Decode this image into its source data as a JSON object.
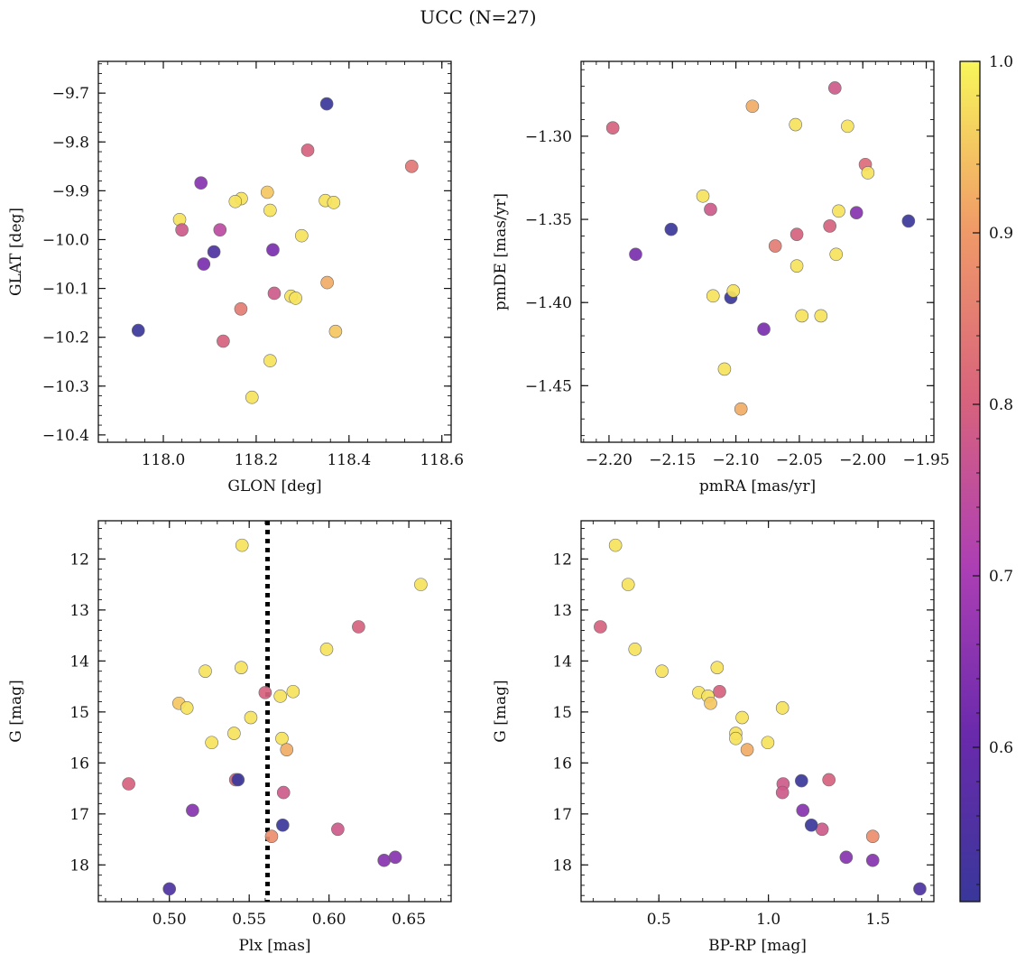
{
  "title": "UCC (N=27)",
  "colorbar": {
    "ticks": [
      "0.6",
      "0.7",
      "0.8",
      "0.9",
      "1.0"
    ],
    "tick_values": [
      0.6,
      0.7,
      0.8,
      0.9,
      1.0
    ],
    "vmin": 0.51,
    "vmax": 1.0,
    "colormap": "plasma"
  },
  "chart_data": [
    {
      "type": "scatter",
      "xlabel": "GLON [deg]",
      "ylabel": "GLAT [deg]",
      "xlim": [
        117.86,
        118.62
      ],
      "ylim": [
        -10.415,
        -9.635
      ],
      "xticks": [
        118.0,
        118.2,
        118.4,
        118.6
      ],
      "xtick_labels": [
        "118.0",
        "118.2",
        "118.4",
        "118.6"
      ],
      "yticks": [
        -10.4,
        -10.3,
        -10.2,
        -10.1,
        -10.0,
        -9.9,
        -9.8,
        -9.7
      ],
      "ytick_labels": [
        "−10.4",
        "−10.3",
        "−10.2",
        "−10.1",
        "−10.0",
        "−9.9",
        "−9.8",
        "−9.7"
      ],
      "y_inverted": false,
      "x": [
        118.352,
        118.311,
        118.535,
        118.081,
        118.224,
        118.168,
        118.155,
        118.349,
        118.367,
        118.23,
        118.035,
        118.04,
        118.122,
        118.236,
        118.109,
        118.298,
        118.087,
        118.353,
        118.239,
        118.275,
        118.285,
        118.167,
        118.371,
        117.946,
        118.129,
        118.23,
        118.191
      ],
      "y": [
        -9.722,
        -9.817,
        -9.85,
        -9.884,
        -9.903,
        -9.916,
        -9.922,
        -9.92,
        -9.924,
        -9.94,
        -9.959,
        -9.98,
        -9.98,
        -10.021,
        -10.025,
        -9.992,
        -10.05,
        -10.088,
        -10.11,
        -10.116,
        -10.12,
        -10.142,
        -10.188,
        -10.186,
        -10.208,
        -10.248,
        -10.323
      ],
      "c": [
        0.51,
        0.8,
        0.84,
        0.65,
        0.95,
        0.98,
        0.98,
        0.98,
        0.98,
        0.98,
        0.98,
        0.78,
        0.74,
        0.63,
        0.55,
        0.98,
        0.63,
        0.92,
        0.78,
        0.98,
        0.98,
        0.85,
        0.95,
        0.51,
        0.8,
        0.98,
        0.98
      ]
    },
    {
      "type": "scatter",
      "xlabel": "pmRA [mas/yr]",
      "ylabel": "pmDE [mas/yr]",
      "xlim": [
        -2.222,
        -1.944
      ],
      "ylim": [
        -1.484,
        -1.255
      ],
      "xticks": [
        -2.2,
        -2.15,
        -2.1,
        -2.05,
        -2.0,
        -1.95
      ],
      "xtick_labels": [
        "−2.20",
        "−2.15",
        "−2.10",
        "−2.05",
        "−2.00",
        "−1.95"
      ],
      "yticks": [
        -1.45,
        -1.4,
        -1.35,
        -1.3
      ],
      "ytick_labels": [
        "−1.45",
        "−1.40",
        "−1.35",
        "−1.30"
      ],
      "y_inverted": false,
      "x": [
        -2.022,
        -2.087,
        -2.197,
        -2.053,
        -2.012,
        -1.998,
        -1.996,
        -2.126,
        -2.12,
        -2.019,
        -2.005,
        -2.026,
        -1.964,
        -2.151,
        -2.052,
        -2.069,
        -2.021,
        -2.052,
        -2.179,
        -2.104,
        -2.102,
        -2.118,
        -2.048,
        -2.033,
        -2.078,
        -2.109,
        -2.096
      ],
      "y": [
        -1.271,
        -1.282,
        -1.295,
        -1.293,
        -1.294,
        -1.317,
        -1.322,
        -1.336,
        -1.344,
        -1.345,
        -1.346,
        -1.354,
        -1.351,
        -1.356,
        -1.359,
        -1.366,
        -1.371,
        -1.378,
        -1.371,
        -1.397,
        -1.393,
        -1.396,
        -1.408,
        -1.408,
        -1.416,
        -1.44,
        -1.464
      ],
      "c": [
        0.78,
        0.92,
        0.8,
        0.98,
        0.98,
        0.82,
        0.98,
        0.98,
        0.78,
        0.98,
        0.65,
        0.8,
        0.51,
        0.51,
        0.8,
        0.85,
        0.98,
        0.98,
        0.63,
        0.51,
        0.98,
        0.98,
        0.98,
        0.98,
        0.63,
        0.98,
        0.92
      ]
    },
    {
      "type": "scatter",
      "xlabel": "Plx [mas]",
      "ylabel": "G [mag]",
      "xlim": [
        0.4555,
        0.6765
      ],
      "ylim": [
        18.72,
        11.25
      ],
      "xticks": [
        0.5,
        0.55,
        0.6,
        0.65
      ],
      "xtick_labels": [
        "0.50",
        "0.55",
        "0.60",
        "0.65"
      ],
      "yticks": [
        12,
        13,
        14,
        15,
        16,
        17,
        18
      ],
      "ytick_labels": [
        "12",
        "13",
        "14",
        "15",
        "16",
        "17",
        "18"
      ],
      "y_inverted": true,
      "vline": 0.5615,
      "x": [
        0.5455,
        0.6575,
        0.6185,
        0.5985,
        0.5225,
        0.545,
        0.56,
        0.5695,
        0.5775,
        0.506,
        0.511,
        0.551,
        0.5405,
        0.5705,
        0.5265,
        0.5735,
        0.5415,
        0.543,
        0.4745,
        0.5715,
        0.5145,
        0.6055,
        0.571,
        0.564,
        0.6415,
        0.6345,
        0.5
      ],
      "y": [
        11.73,
        12.5,
        13.33,
        13.77,
        14.2,
        14.13,
        14.62,
        14.69,
        14.6,
        14.83,
        14.92,
        15.11,
        15.42,
        15.52,
        15.6,
        15.74,
        16.33,
        16.33,
        16.41,
        16.58,
        16.93,
        17.3,
        17.22,
        17.44,
        17.85,
        17.91,
        18.47
      ],
      "c": [
        0.98,
        0.98,
        0.8,
        0.98,
        0.98,
        0.98,
        0.8,
        0.98,
        0.98,
        0.95,
        0.98,
        0.98,
        0.98,
        0.98,
        0.98,
        0.92,
        0.8,
        0.51,
        0.8,
        0.78,
        0.65,
        0.78,
        0.51,
        0.88,
        0.65,
        0.65,
        0.55
      ]
    },
    {
      "type": "scatter",
      "xlabel": "BP-RP [mag]",
      "ylabel": "G [mag]",
      "xlim": [
        0.145,
        1.755
      ],
      "ylim": [
        18.72,
        11.25
      ],
      "xticks": [
        0.5,
        1.0,
        1.5
      ],
      "xtick_labels": [
        "0.5",
        "1.0",
        "1.5"
      ],
      "yticks": [
        12,
        13,
        14,
        15,
        16,
        17,
        18
      ],
      "ytick_labels": [
        "12",
        "13",
        "14",
        "15",
        "16",
        "17",
        "18"
      ],
      "y_inverted": true,
      "x": [
        0.302,
        0.36,
        0.233,
        0.391,
        0.514,
        0.766,
        0.682,
        0.724,
        0.777,
        0.736,
        1.064,
        0.88,
        0.851,
        0.851,
        0.997,
        0.903,
        1.151,
        1.276,
        1.067,
        1.064,
        1.157,
        1.245,
        1.196,
        1.476,
        1.355,
        1.476,
        1.691
      ],
      "y": [
        11.73,
        12.5,
        13.33,
        13.77,
        14.2,
        14.13,
        14.62,
        14.69,
        14.6,
        14.83,
        14.92,
        15.11,
        15.42,
        15.52,
        15.6,
        15.74,
        16.35,
        16.33,
        16.41,
        16.58,
        16.93,
        17.3,
        17.22,
        17.44,
        17.85,
        17.91,
        18.47
      ],
      "c": [
        0.98,
        0.98,
        0.8,
        0.98,
        0.98,
        0.98,
        0.98,
        0.98,
        0.8,
        0.95,
        0.98,
        0.98,
        0.98,
        0.98,
        0.98,
        0.92,
        0.51,
        0.8,
        0.78,
        0.78,
        0.65,
        0.78,
        0.51,
        0.88,
        0.65,
        0.65,
        0.55
      ]
    }
  ]
}
